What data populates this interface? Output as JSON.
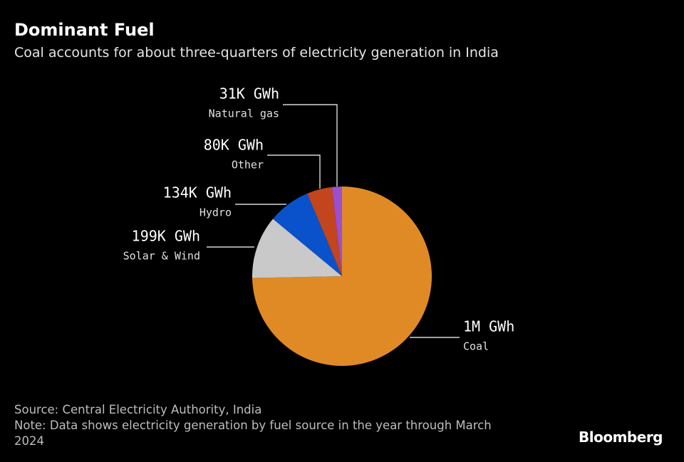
{
  "chart_data": {
    "type": "pie",
    "title": "Dominant Fuel",
    "subtitle": "Coal accounts for about three-quarters of electricity generation in India",
    "categories": [
      "Coal",
      "Solar & Wind",
      "Hydro",
      "Other",
      "Natural gas"
    ],
    "values": [
      1310000,
      199000,
      134000,
      80000,
      31000
    ],
    "value_labels": [
      "1M GWh",
      "199K GWh",
      "134K GWh",
      "80K GWh",
      "31K GWh"
    ],
    "colors": [
      "#e08a26",
      "#c9c9c9",
      "#0a52cc",
      "#c2451e",
      "#9b4fd1"
    ],
    "source": "Source: Central Electricity Authority, India",
    "note": "Note: Data shows electricity generation by fuel source in the year through March 2024",
    "brand": "Bloomberg"
  }
}
